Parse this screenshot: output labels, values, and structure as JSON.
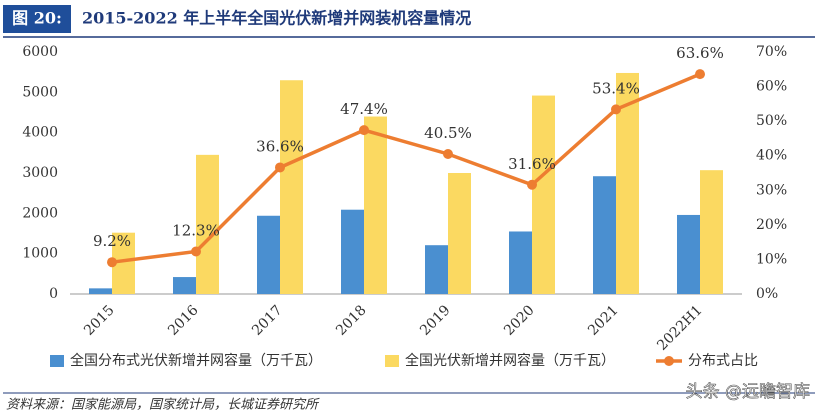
{
  "header": {
    "label": "图 20:",
    "title": "2015-2022 年上半年全国光伏新增并网装机容量情况"
  },
  "chart_data": {
    "type": "bar-line",
    "categories": [
      "2015",
      "2016",
      "2017",
      "2018",
      "2019",
      "2020",
      "2021",
      "2022H1"
    ],
    "series": [
      {
        "name": "全国分布式光伏新增并网容量（万千瓦）",
        "type": "bar",
        "color": "#4a8fd0",
        "values": [
          140,
          420,
          1940,
          2090,
          1210,
          1550,
          2920,
          1960
        ]
      },
      {
        "name": "全国光伏新增并网容量（万千瓦）",
        "type": "bar",
        "color": "#fbd961",
        "values": [
          1520,
          3450,
          5300,
          4400,
          3000,
          4920,
          5480,
          3070
        ]
      },
      {
        "name": "分布式占比",
        "type": "line",
        "axis": "y2",
        "color": "#ed7d31",
        "values": [
          9.2,
          12.3,
          36.6,
          47.4,
          40.5,
          31.6,
          53.4,
          63.6
        ],
        "value_labels": [
          "9.2%",
          "12.3%",
          "36.6%",
          "47.4%",
          "40.5%",
          "31.6%",
          "53.4%",
          "63.6%"
        ]
      }
    ],
    "ylim": [
      0,
      6000
    ],
    "yticks": [
      0,
      1000,
      2000,
      3000,
      4000,
      5000,
      6000
    ],
    "y2lim": [
      0,
      70
    ],
    "y2ticks": [
      {
        "value": 0,
        "label": "0%"
      },
      {
        "value": 10,
        "label": "10%"
      },
      {
        "value": 20,
        "label": "20%"
      },
      {
        "value": 30,
        "label": "30%"
      },
      {
        "value": 40,
        "label": "40%"
      },
      {
        "value": 50,
        "label": "50%"
      },
      {
        "value": 60,
        "label": "60%"
      },
      {
        "value": 70,
        "label": "70%"
      }
    ],
    "grid": false
  },
  "source": "资料来源：国家能源局，国家统计局，长城证券研究所",
  "watermark": "头条 @远瞻智库"
}
